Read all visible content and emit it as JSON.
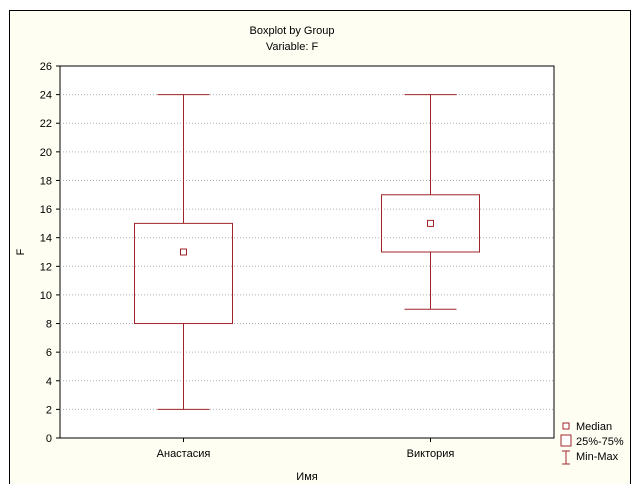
{
  "chart_data": {
    "type": "boxplot",
    "title": "Boxplot by Group",
    "subtitle": "Variable: F",
    "xlabel": "Имя",
    "ylabel": "F",
    "ylim": [
      0,
      26
    ],
    "yticks": [
      0,
      2,
      4,
      6,
      8,
      10,
      12,
      14,
      16,
      18,
      20,
      22,
      24,
      26
    ],
    "grid": true,
    "legend_position": "bottom-right",
    "legend": [
      "Median",
      "25%-75%",
      "Min-Max"
    ],
    "categories": [
      "Анастасия",
      "Виктория"
    ],
    "groups": [
      {
        "category": "Анастасия",
        "min": 2,
        "q1": 8,
        "median": 13,
        "q3": 15,
        "max": 24
      },
      {
        "category": "Виктория",
        "min": 9,
        "q1": 13,
        "median": 15,
        "q3": 17,
        "max": 24
      }
    ],
    "colors": {
      "box": "#a0252a",
      "background": "#fffef2",
      "plot_background": "#ffffff",
      "grid": "#b0b0b0"
    }
  }
}
